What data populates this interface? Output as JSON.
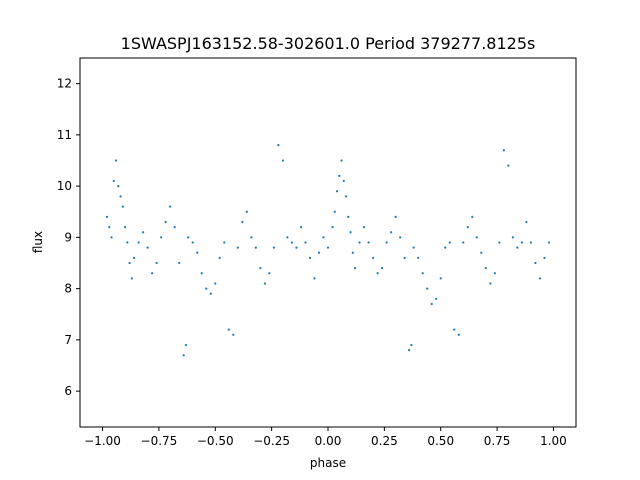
{
  "chart_data": {
    "type": "scatter",
    "title": "1SWASPJ163152.58-302601.0 Period 379277.8125s",
    "xlabel": "phase",
    "ylabel": "flux",
    "xlim": [
      -1.1,
      1.1
    ],
    "ylim": [
      5.3,
      12.5
    ],
    "xticks": [
      -1.0,
      -0.75,
      -0.5,
      -0.25,
      0.0,
      0.25,
      0.5,
      0.75,
      1.0
    ],
    "xtick_labels": [
      "−1.00",
      "−0.75",
      "−0.50",
      "−0.25",
      "0.00",
      "0.25",
      "0.50",
      "0.75",
      "1.00"
    ],
    "yticks": [
      6,
      7,
      8,
      9,
      10,
      11,
      12
    ],
    "ytick_labels": [
      "6",
      "7",
      "8",
      "9",
      "10",
      "11",
      "12"
    ],
    "grid": false,
    "marker_color": "#1f77b4",
    "series": [
      {
        "x": [
          -0.98,
          -0.97,
          -0.96,
          -0.95,
          -0.94,
          -0.93,
          -0.92,
          -0.91,
          -0.9,
          -0.89,
          -0.88,
          -0.87,
          -0.86,
          -0.84,
          -0.82,
          -0.8,
          -0.78,
          -0.76,
          -0.74,
          -0.72,
          -0.7,
          -0.68,
          -0.66,
          -0.64,
          -0.63,
          -0.62,
          -0.6,
          -0.58,
          -0.56,
          -0.54,
          -0.52,
          -0.5,
          -0.48,
          -0.46,
          -0.44,
          -0.42,
          -0.4,
          -0.38,
          -0.36,
          -0.34,
          -0.32,
          -0.3,
          -0.28,
          -0.26,
          -0.24,
          -0.22,
          -0.2,
          -0.18,
          -0.16,
          -0.14,
          -0.12,
          -0.1,
          -0.08,
          -0.06,
          -0.04,
          -0.02,
          0.0,
          0.02,
          0.03,
          0.04,
          0.05,
          0.06,
          0.07,
          0.08,
          0.09,
          0.1,
          0.11,
          0.12,
          0.14,
          0.16,
          0.18,
          0.2,
          0.22,
          0.24,
          0.26,
          0.28,
          0.3,
          0.32,
          0.34,
          0.36,
          0.37,
          0.38,
          0.4,
          0.42,
          0.44,
          0.46,
          0.48,
          0.5,
          0.52,
          0.54,
          0.56,
          0.58,
          0.6,
          0.62,
          0.64,
          0.66,
          0.68,
          0.7,
          0.72,
          0.74,
          0.76,
          0.78,
          0.8,
          0.82,
          0.84,
          0.86,
          0.88,
          0.9,
          0.92,
          0.94,
          0.96,
          0.98
        ],
        "y": [
          9.4,
          9.2,
          9.0,
          10.1,
          10.5,
          10.0,
          9.8,
          9.6,
          9.2,
          8.9,
          8.5,
          8.2,
          8.6,
          8.9,
          9.1,
          8.8,
          8.3,
          8.5,
          9.0,
          9.3,
          9.6,
          9.2,
          8.5,
          6.7,
          6.9,
          9.0,
          8.9,
          8.7,
          8.3,
          8.0,
          7.9,
          8.1,
          8.6,
          8.9,
          7.2,
          7.1,
          8.8,
          9.3,
          9.5,
          9.0,
          8.8,
          8.4,
          8.1,
          8.3,
          8.8,
          10.8,
          10.5,
          9.0,
          8.9,
          8.8,
          9.2,
          8.9,
          8.6,
          8.2,
          8.7,
          9.0,
          8.8,
          9.2,
          9.5,
          9.9,
          10.2,
          10.5,
          10.1,
          9.8,
          9.4,
          9.1,
          8.7,
          8.4,
          8.9,
          9.2,
          8.9,
          8.6,
          8.3,
          8.4,
          8.9,
          9.1,
          9.4,
          9.0,
          8.6,
          6.8,
          6.9,
          8.8,
          8.6,
          8.3,
          8.0,
          7.7,
          7.8,
          8.2,
          8.8,
          8.9,
          7.2,
          7.1,
          8.9,
          9.2,
          9.4,
          9.0,
          8.7,
          8.4,
          8.1,
          8.3,
          8.9,
          10.7,
          10.4,
          9.0,
          8.8,
          8.9,
          9.3,
          8.9,
          8.5,
          8.2,
          8.6,
          8.9
        ]
      }
    ]
  }
}
